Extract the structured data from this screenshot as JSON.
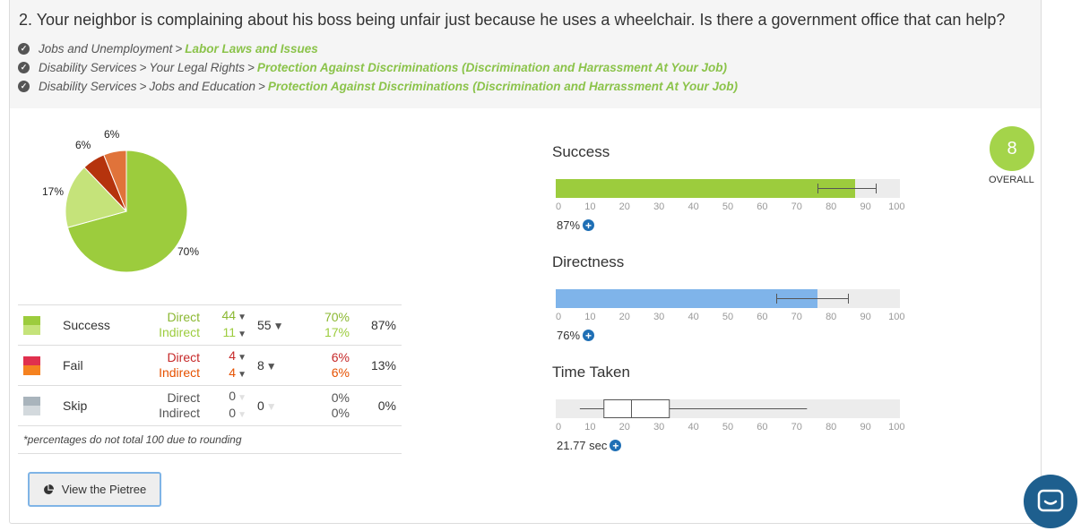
{
  "question": "2. Your neighbor is complaining about his boss being unfair just because he uses a wheelchair. Is there a government office that can help?",
  "paths": [
    {
      "parts": [
        "Jobs and Unemployment"
      ],
      "last": "Labor Laws and Issues"
    },
    {
      "parts": [
        "Disability Services",
        "Your Legal Rights"
      ],
      "last": "Protection Against Discriminations (Discrimination and Harrassment At Your Job)"
    },
    {
      "parts": [
        "Disability Services",
        "Jobs and Education"
      ],
      "last": "Protection Against Discriminations (Discrimination and Harrassment At Your Job)"
    }
  ],
  "path_separator": ">",
  "chart_data": [
    {
      "type": "pie",
      "slices": [
        {
          "label": "70%",
          "value": 70,
          "color": "#9ccc3d"
        },
        {
          "label": "17%",
          "value": 17,
          "color": "#c5e37a"
        },
        {
          "label": "6%",
          "value": 6,
          "color": "#b5330d"
        },
        {
          "label": "6%",
          "value": 6,
          "color": "#e0733a"
        }
      ]
    },
    {
      "type": "bar",
      "title": "Success",
      "value": 87,
      "error_low": 76,
      "error_high": 93,
      "xlim": [
        0,
        100
      ],
      "ticks": [
        "0",
        "10",
        "20",
        "30",
        "40",
        "50",
        "60",
        "70",
        "80",
        "90",
        "100"
      ],
      "value_label": "87%",
      "color": "#9ccc3d"
    },
    {
      "type": "bar",
      "title": "Directness",
      "value": 76,
      "error_low": 64,
      "error_high": 85,
      "xlim": [
        0,
        100
      ],
      "ticks": [
        "0",
        "10",
        "20",
        "30",
        "40",
        "50",
        "60",
        "70",
        "80",
        "90",
        "100"
      ],
      "value_label": "76%",
      "color": "#7fb4ea"
    },
    {
      "type": "box",
      "title": "Time Taken",
      "whisker_low": 7,
      "q1": 14,
      "median": 22,
      "q3": 33,
      "whisker_high": 73,
      "xlim": [
        0,
        100
      ],
      "ticks": [
        "0",
        "10",
        "20",
        "30",
        "40",
        "50",
        "60",
        "70",
        "80",
        "90",
        "100"
      ],
      "value_label": "21.77 sec"
    }
  ],
  "results": [
    {
      "name": "Success",
      "swatch": [
        "#9ccc3d",
        "#c5e37a"
      ],
      "direct_label": "Direct",
      "indirect_label": "Indirect",
      "direct_count": "44",
      "indirect_count": "11",
      "total": "55",
      "direct_pct": "70%",
      "indirect_pct": "17%",
      "overall": "87%",
      "direct_color": "#8bb832",
      "indirect_color": "#9ccc3d"
    },
    {
      "name": "Fail",
      "swatch": [
        "#e0304e",
        "#f58220"
      ],
      "direct_label": "Direct",
      "indirect_label": "Indirect",
      "direct_count": "4",
      "indirect_count": "4",
      "total": "8",
      "direct_pct": "6%",
      "indirect_pct": "6%",
      "overall": "13%",
      "direct_color": "#c62828",
      "indirect_color": "#e65100"
    },
    {
      "name": "Skip",
      "swatch": [
        "#a9b4bc",
        "#d3d9dd"
      ],
      "direct_label": "Direct",
      "indirect_label": "Indirect",
      "direct_count": "0",
      "indirect_count": "0",
      "total": "0",
      "direct_pct": "0%",
      "indirect_pct": "0%",
      "overall": "0%",
      "direct_color": "#555555",
      "indirect_color": "#555555"
    }
  ],
  "footnote": "*percentages do not total 100 due to rounding",
  "pietree_button": "View the Pietree",
  "overall": {
    "score": "8",
    "label": "OVERALL"
  }
}
